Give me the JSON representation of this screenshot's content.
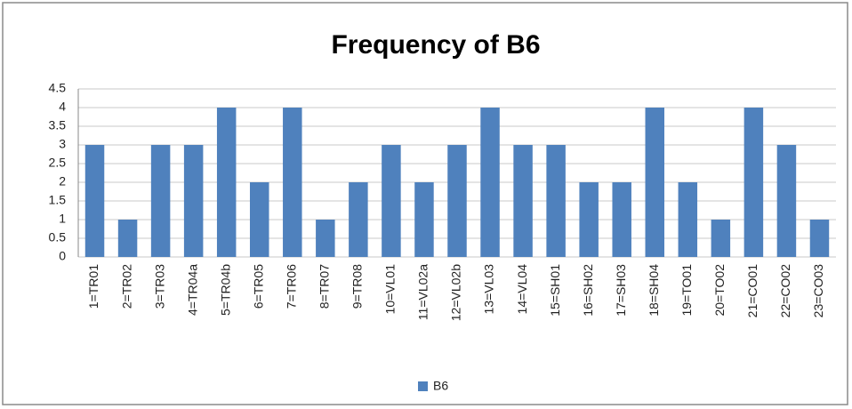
{
  "chart_data": {
    "type": "bar",
    "title": "Frequency of B6",
    "categories": [
      "1=TR01",
      "2=TR02",
      "3=TR03",
      "4=TR04a",
      "5=TR04b",
      "6=TR05",
      "7=TR06",
      "8=TR07",
      "9=TR08",
      "10=VL01",
      "11=VL02a",
      "12=VL02b",
      "13=VL03",
      "14=VL04",
      "15=SH01",
      "16=SH02",
      "17=SH03",
      "18=SH04",
      "19=TO01",
      "20=TO02",
      "21=CO01",
      "22=CO02",
      "23=CO03"
    ],
    "series": [
      {
        "name": "B6",
        "color": "#4f81bd",
        "values": [
          3,
          1,
          3,
          3,
          4,
          2,
          4,
          1,
          2,
          3,
          2,
          3,
          4,
          3,
          3,
          2,
          2,
          4,
          2,
          1,
          4,
          3,
          1
        ]
      }
    ],
    "ylim": [
      0,
      4.5
    ],
    "yticks": [
      0,
      0.5,
      1,
      1.5,
      2,
      2.5,
      3,
      3.5,
      4,
      4.5
    ],
    "grid": true,
    "legend": "bottom"
  }
}
